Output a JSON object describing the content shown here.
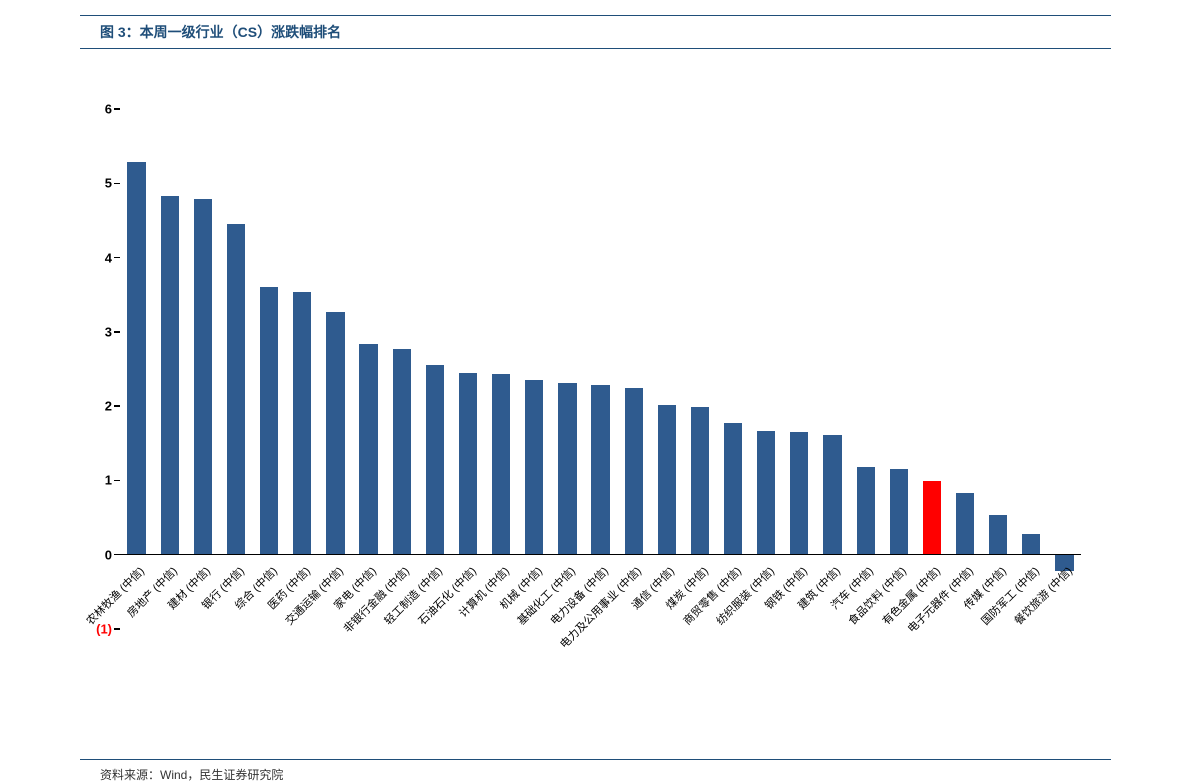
{
  "title": "图 3：本周一级行业（CS）涨跌幅排名",
  "source": "资料来源：Wind，民生证券研究院",
  "chart": {
    "type": "bar",
    "ylim": [
      -1,
      6
    ],
    "ytick_step": 1,
    "yticks": [
      {
        "v": -1,
        "label": "(1)",
        "neg": true
      },
      {
        "v": 0,
        "label": "0",
        "neg": false
      },
      {
        "v": 1,
        "label": "1",
        "neg": false
      },
      {
        "v": 2,
        "label": "2",
        "neg": false
      },
      {
        "v": 3,
        "label": "3",
        "neg": false
      },
      {
        "v": 4,
        "label": "4",
        "neg": false
      },
      {
        "v": 5,
        "label": "5",
        "neg": false
      },
      {
        "v": 6,
        "label": "6",
        "neg": false
      }
    ],
    "bar_color_default": "#2f5b8f",
    "bar_color_highlight": "#ff0000",
    "background_color": "#ffffff",
    "axis_color": "#000000",
    "title_color": "#1f4e79",
    "label_fontsize": 11,
    "tick_fontsize": 13,
    "title_fontsize": 14,
    "bar_width": 0.55,
    "categories": [
      "农林牧渔 (中信)",
      "房地产 (中信)",
      "建材 (中信)",
      "银行 (中信)",
      "综合 (中信)",
      "医药 (中信)",
      "交通运输 (中信)",
      "家电 (中信)",
      "非银行金融 (中信)",
      "轻工制造 (中信)",
      "石油石化 (中信)",
      "计算机 (中信)",
      "机械 (中信)",
      "基础化工 (中信)",
      "电力设备 (中信)",
      "电力及公用事业 (中信)",
      "通信 (中信)",
      "煤炭 (中信)",
      "商贸零售 (中信)",
      "纺织服装 (中信)",
      "钢铁 (中信)",
      "建筑 (中信)",
      "汽车 (中信)",
      "食品饮料 (中信)",
      "有色金属 (中信)",
      "电子元器件 (中信)",
      "传媒 (中信)",
      "国防军工 (中信)",
      "餐饮旅游 (中信)"
    ],
    "values": [
      5.28,
      4.83,
      4.79,
      4.45,
      3.61,
      3.54,
      3.27,
      2.84,
      2.77,
      2.56,
      2.45,
      2.43,
      2.35,
      2.31,
      2.28,
      2.25,
      2.02,
      1.99,
      1.77,
      1.67,
      1.65,
      1.61,
      1.18,
      1.16,
      0.99,
      0.83,
      0.54,
      0.28,
      -0.22
    ],
    "highlight_index": 24
  }
}
